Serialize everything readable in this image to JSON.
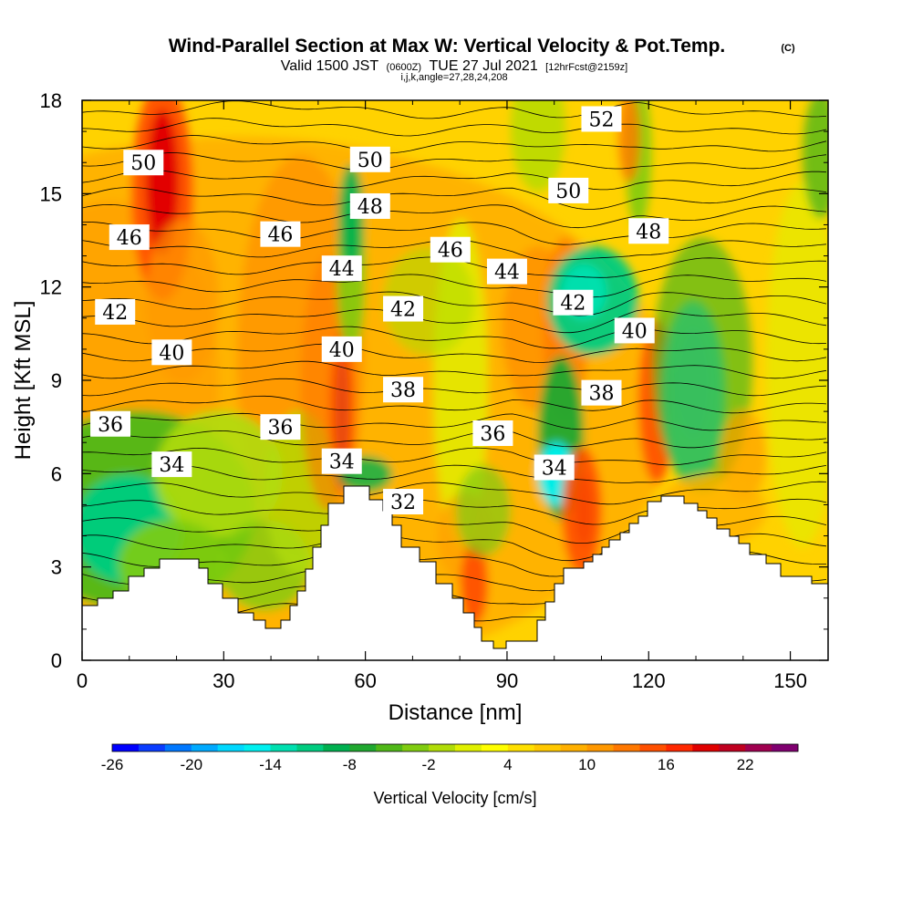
{
  "title": {
    "main": "Wind-Parallel Section at Max W: Vertical Velocity & Pot.Temp.",
    "copyright": "(C)",
    "valid_prefix": "Valid 1500 JST",
    "valid_z": "(0600Z)",
    "valid_date": "TUE 27 Jul 2021",
    "valid_fcst": "[12hrFcst@2159z]",
    "indices": "i,j,k,angle=27,28,24,208"
  },
  "chart_data": {
    "type": "heatmap",
    "xlabel": "Distance [nm]",
    "ylabel": "Height [Kft MSL]",
    "xlim": [
      0,
      158
    ],
    "ylim": [
      0,
      18
    ],
    "x_ticks": [
      "0",
      "30",
      "60",
      "90",
      "120",
      "150"
    ],
    "y_ticks": [
      "0",
      "3",
      "6",
      "9",
      "12",
      "15",
      "18"
    ],
    "x_tick_values": [
      0,
      30,
      60,
      90,
      120,
      150
    ],
    "y_tick_values": [
      0,
      3,
      6,
      9,
      12,
      15,
      18
    ],
    "colorbar": {
      "label": "Vertical Velocity [cm/s]",
      "range": [
        -26,
        26
      ],
      "tick_labels": [
        "-26",
        "-20",
        "-14",
        "-8",
        "-2",
        "4",
        "10",
        "16",
        "22"
      ],
      "tick_values": [
        -26,
        -20,
        -14,
        -8,
        -2,
        4,
        10,
        16,
        22
      ],
      "colors": [
        "#0000ff",
        "#0a3cff",
        "#0078ff",
        "#00aaff",
        "#00d8ff",
        "#00f0f0",
        "#00e0b0",
        "#00cc80",
        "#00b050",
        "#20a830",
        "#50b818",
        "#80cc10",
        "#b0dc08",
        "#e0f000",
        "#ffff00",
        "#ffe000",
        "#ffc800",
        "#ffb000",
        "#ff9800",
        "#ff7800",
        "#ff5000",
        "#ff2800",
        "#e00000",
        "#c00020",
        "#a00050",
        "#800070"
      ]
    },
    "contour_labels": [
      {
        "text": "50",
        "x": 13,
        "y": 16.0
      },
      {
        "text": "46",
        "x": 10,
        "y": 13.6
      },
      {
        "text": "42",
        "x": 7,
        "y": 11.2
      },
      {
        "text": "40",
        "x": 19,
        "y": 9.9
      },
      {
        "text": "36",
        "x": 6,
        "y": 7.6
      },
      {
        "text": "34",
        "x": 19,
        "y": 6.3
      },
      {
        "text": "46",
        "x": 42,
        "y": 13.7
      },
      {
        "text": "50",
        "x": 61,
        "y": 16.1
      },
      {
        "text": "48",
        "x": 61,
        "y": 14.6
      },
      {
        "text": "44",
        "x": 55,
        "y": 12.6
      },
      {
        "text": "40",
        "x": 55,
        "y": 10.0
      },
      {
        "text": "36",
        "x": 42,
        "y": 7.5
      },
      {
        "text": "34",
        "x": 55,
        "y": 6.4
      },
      {
        "text": "42",
        "x": 68,
        "y": 11.3
      },
      {
        "text": "38",
        "x": 68,
        "y": 8.7
      },
      {
        "text": "32",
        "x": 68,
        "y": 5.1
      },
      {
        "text": "46",
        "x": 78,
        "y": 13.2
      },
      {
        "text": "44",
        "x": 90,
        "y": 12.5
      },
      {
        "text": "36",
        "x": 87,
        "y": 7.3
      },
      {
        "text": "34",
        "x": 100,
        "y": 6.2
      },
      {
        "text": "50",
        "x": 103,
        "y": 15.1
      },
      {
        "text": "42",
        "x": 104,
        "y": 11.5
      },
      {
        "text": "38",
        "x": 110,
        "y": 8.6
      },
      {
        "text": "40",
        "x": 117,
        "y": 10.6
      },
      {
        "text": "48",
        "x": 120,
        "y": 13.8
      },
      {
        "text": "52",
        "x": 110,
        "y": 17.4
      }
    ]
  }
}
